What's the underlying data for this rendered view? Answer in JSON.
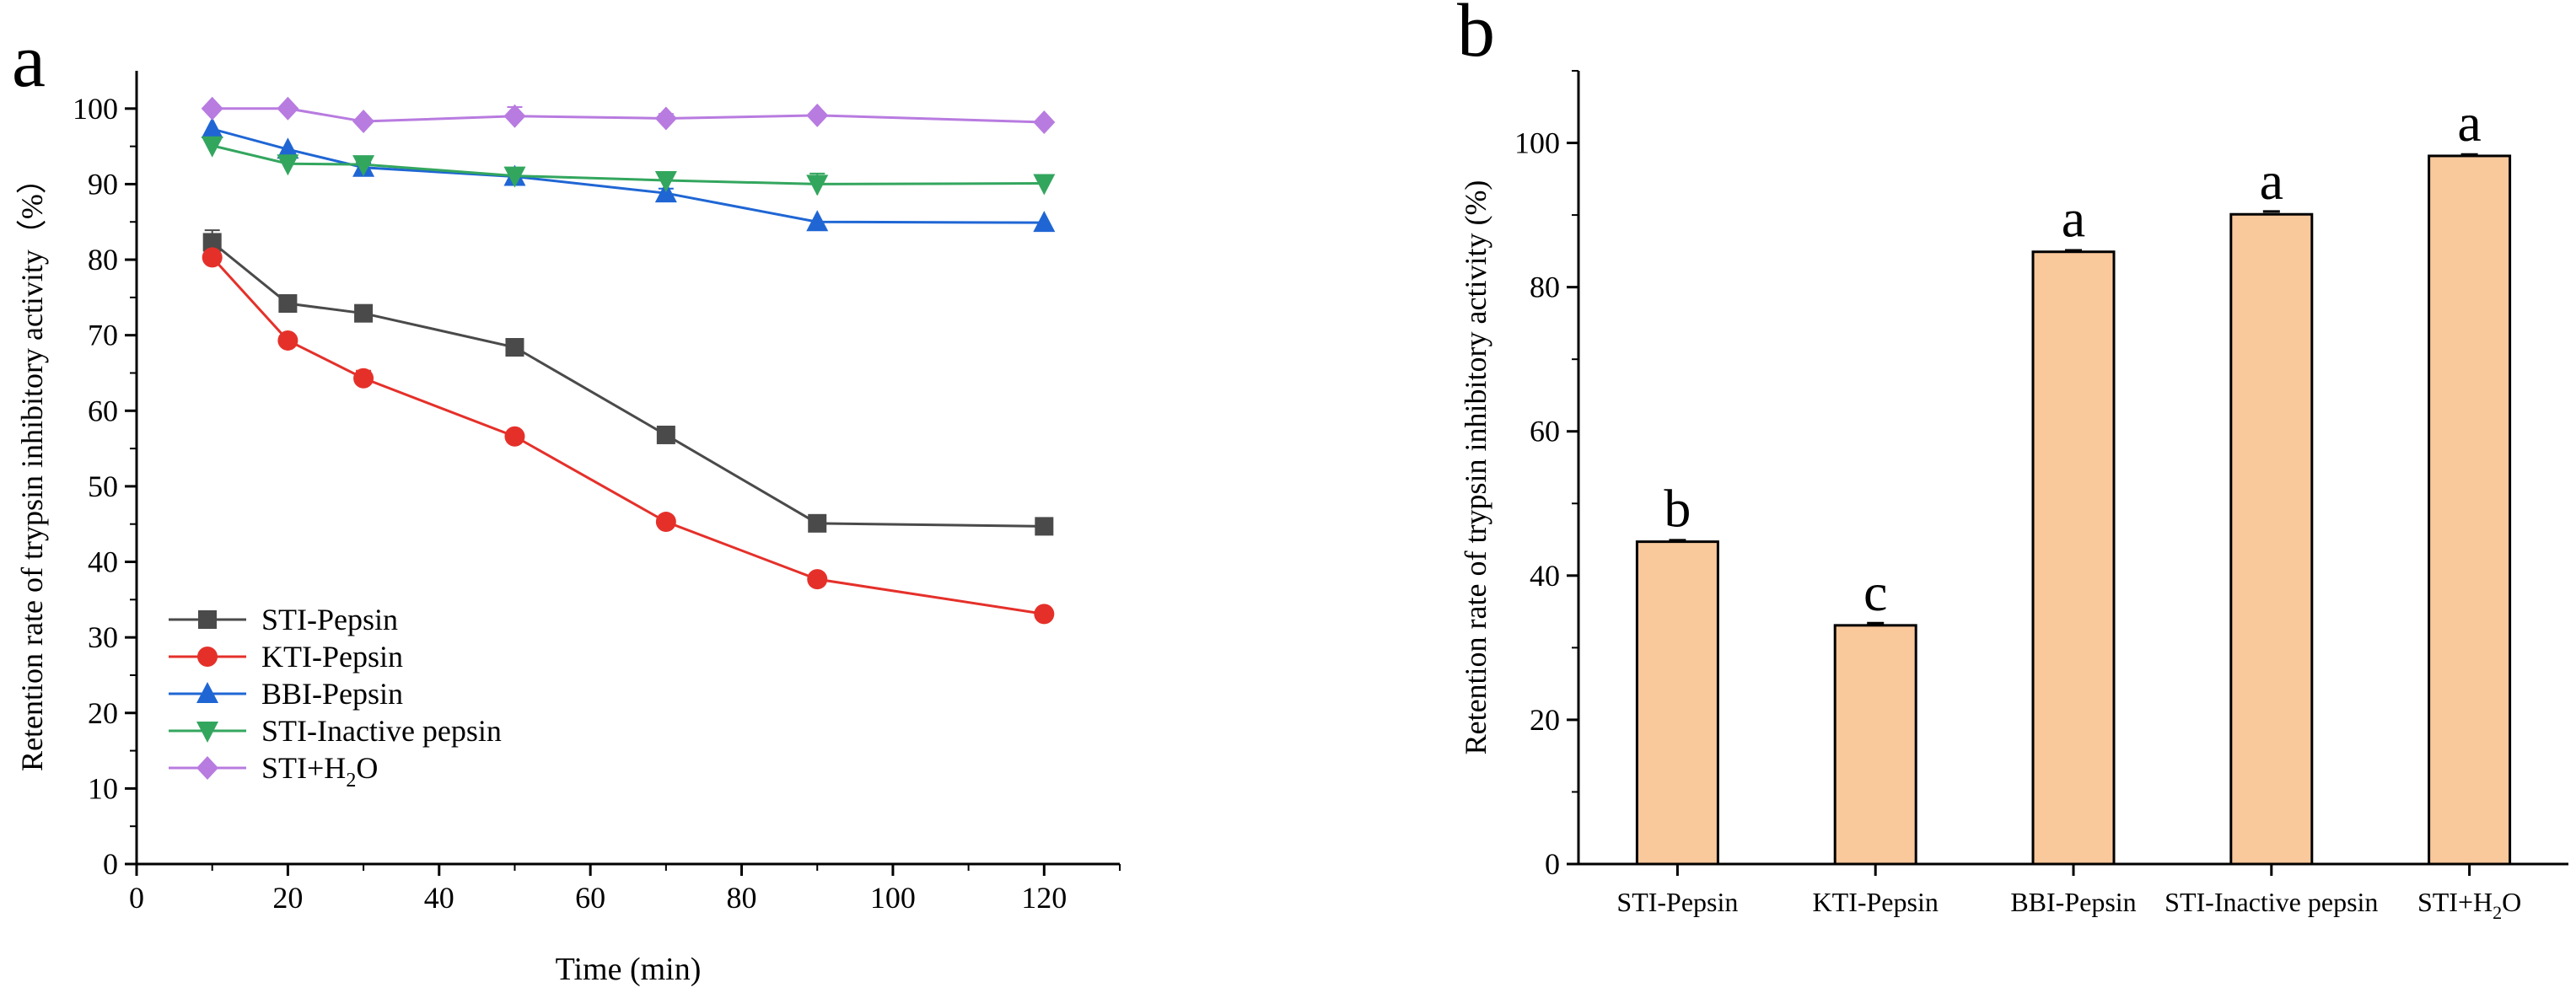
{
  "panel_a_letter": "a",
  "panel_b_letter": "b",
  "chart_data": [
    {
      "type": "line",
      "panel": "a",
      "title": "",
      "xlabel": "Time (min)",
      "ylabel": "Retention rate of trypsin inhibitory activity（%）",
      "xlim": [
        0,
        130
      ],
      "ylim": [
        0,
        105
      ],
      "xticks": [
        0,
        20,
        40,
        60,
        80,
        100,
        120
      ],
      "yticks": [
        0,
        10,
        20,
        30,
        40,
        50,
        60,
        70,
        80,
        90,
        100
      ],
      "x": [
        10,
        20,
        30,
        50,
        70,
        90,
        120
      ],
      "legend_position": "lower-left",
      "series": [
        {
          "name": "STI-Pepsin",
          "marker": "square",
          "color": "#4a4a4a",
          "values": [
            82.3,
            74.2,
            72.9,
            68.4,
            56.8,
            45.1,
            44.7
          ],
          "errors": [
            1.6,
            0.6,
            0.7,
            0.6,
            0.5,
            0.4,
            0.4
          ]
        },
        {
          "name": "KTI-Pepsin",
          "marker": "circle",
          "color": "#e5302a",
          "values": [
            80.3,
            69.3,
            64.3,
            56.6,
            45.3,
            37.7,
            33.1
          ],
          "errors": [
            0.6,
            0.6,
            1.0,
            0.5,
            0.4,
            0.4,
            0.3
          ]
        },
        {
          "name": "BBI-Pepsin",
          "marker": "triangle-up",
          "color": "#1f66d4",
          "values": [
            97.3,
            94.6,
            92.2,
            91.0,
            88.8,
            85.0,
            84.9
          ],
          "errors": [
            0.5,
            0.5,
            0.6,
            0.5,
            0.6,
            0.5,
            0.4
          ]
        },
        {
          "name": "STI-Inactive pepsin",
          "marker": "triangle-down",
          "color": "#33a65e",
          "values": [
            95.1,
            92.7,
            92.6,
            91.1,
            90.5,
            90.0,
            90.1
          ],
          "errors": [
            0.6,
            0.5,
            0.6,
            0.6,
            0.6,
            1.4,
            0.5
          ]
        },
        {
          "name": "STI+H",
          "name_sub": "2",
          "name_tail": "O",
          "marker": "diamond",
          "color": "#b87be0",
          "values": [
            100.0,
            100.0,
            98.3,
            99.0,
            98.7,
            99.1,
            98.2
          ],
          "errors": [
            0.4,
            0.4,
            0.5,
            1.2,
            0.6,
            0.5,
            0.4
          ]
        }
      ]
    },
    {
      "type": "bar",
      "panel": "b",
      "title": "",
      "xlabel": "",
      "ylabel": "Retention rate of trypsin inhibitory activity (%)",
      "ylim": [
        0,
        110
      ],
      "yticks": [
        0,
        20,
        40,
        60,
        80,
        100
      ],
      "bar_color": "#f9c89b",
      "categories": [
        "STI-Pepsin",
        "KTI-Pepsin",
        "BBI-Pepsin",
        "STI-Inactive pepsin",
        "STI+H2O"
      ],
      "category_labels": [
        {
          "text": "STI-Pepsin"
        },
        {
          "text": "KTI-Pepsin"
        },
        {
          "text": "BBI-Pepsin"
        },
        {
          "text": "STI-Inactive pepsin"
        },
        {
          "text": "STI+H",
          "sub": "2",
          "tail": "O"
        }
      ],
      "values": [
        44.7,
        33.1,
        84.9,
        90.1,
        98.2
      ],
      "errors": [
        0.2,
        0.3,
        0.2,
        0.4,
        0.2
      ],
      "significance": [
        "b",
        "c",
        "a",
        "a",
        "a"
      ]
    }
  ]
}
